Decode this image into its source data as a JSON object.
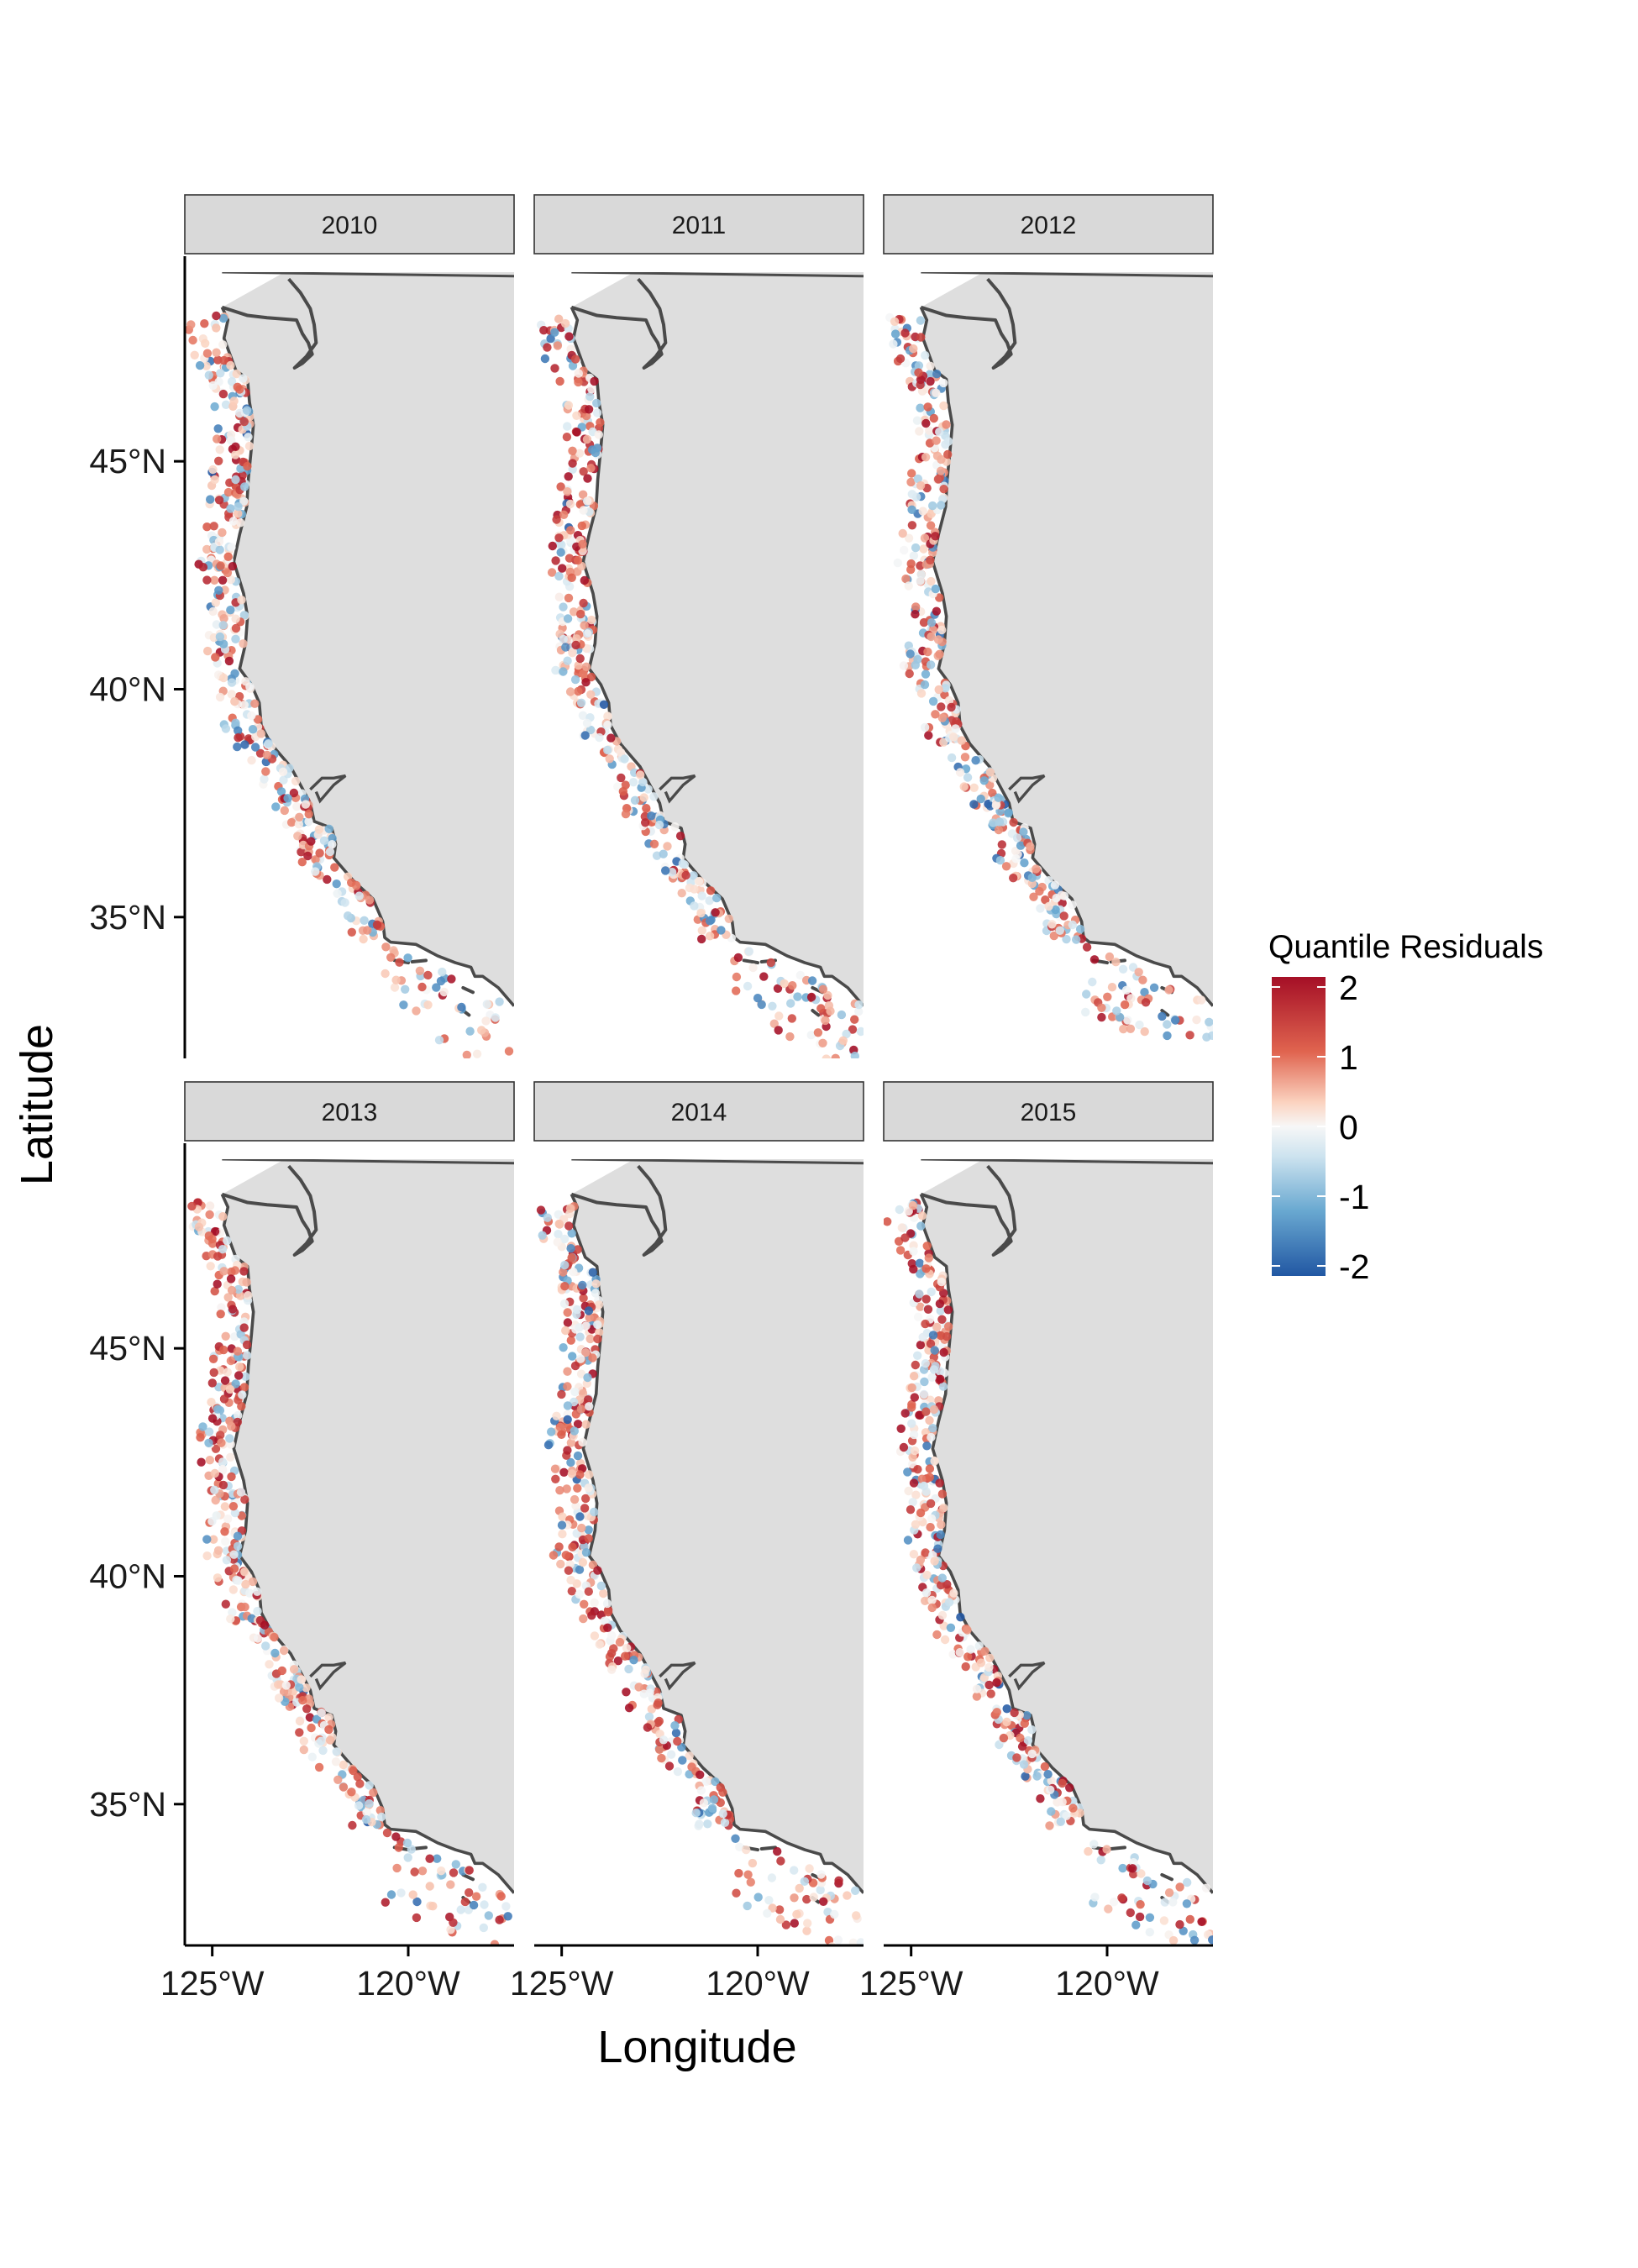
{
  "chart_data": {
    "type": "scatter",
    "facet_by": "year",
    "panels": [
      {
        "label": "2010"
      },
      {
        "label": "2011"
      },
      {
        "label": "2012"
      },
      {
        "label": "2013"
      },
      {
        "label": "2014"
      },
      {
        "label": "2015"
      }
    ],
    "xlabel": "Longitude",
    "ylabel": "Latitude",
    "x_ticks": [
      {
        "value": -125,
        "label": "125°W"
      },
      {
        "value": -120,
        "label": "120°W"
      }
    ],
    "y_ticks": [
      {
        "value": 35,
        "label": "35°N"
      },
      {
        "value": 40,
        "label": "40°N"
      },
      {
        "value": 45,
        "label": "45°N"
      }
    ],
    "xlim": [
      -125.7,
      -117.3
    ],
    "ylim": [
      31.9,
      49.5
    ],
    "legend": {
      "title": "Quantile Residuals",
      "position": "right",
      "min": -2,
      "max": 2,
      "labels": [
        "2",
        "1",
        "0",
        "-1",
        "-2"
      ],
      "palette": [
        "#b2182b",
        "#ef8a62",
        "#fddbc7",
        "#f7f7f7",
        "#d1e5f0",
        "#67a9cf",
        "#2166ac"
      ]
    },
    "land_color": "#dedede",
    "coast_color": "#4a4a4a",
    "grid": false,
    "point_data_note_free": true
  }
}
